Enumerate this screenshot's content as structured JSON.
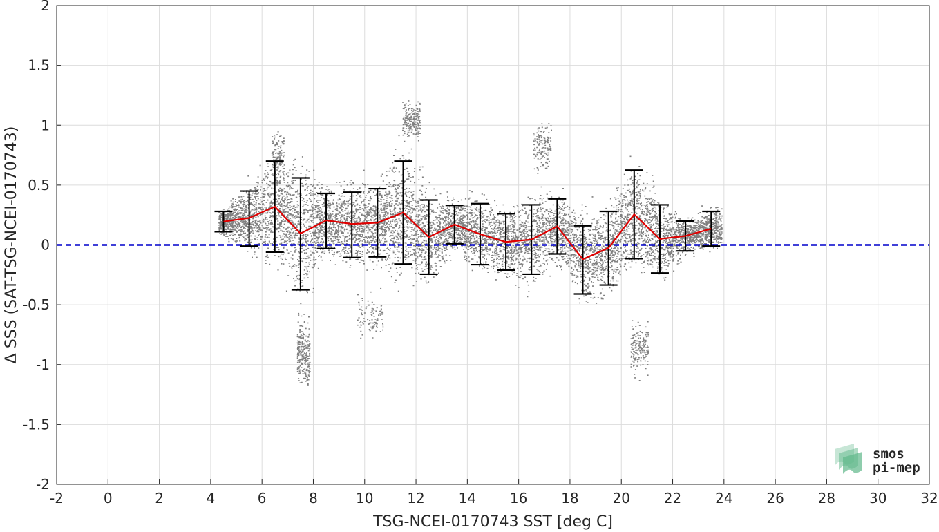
{
  "chart_data": {
    "type": "scatter",
    "xlabel": "TSG-NCEI-0170743 SST [deg C]",
    "ylabel": "Δ SSS (SAT-TSG-NCEI-0170743)",
    "xlim": [
      -2,
      32
    ],
    "ylim": [
      -2,
      2
    ],
    "x_ticks": [
      -2,
      0,
      2,
      4,
      6,
      8,
      10,
      12,
      14,
      16,
      18,
      20,
      22,
      24,
      26,
      28,
      30,
      32
    ],
    "y_ticks": [
      2,
      1.5,
      1,
      0.5,
      0,
      -0.5,
      -1,
      -1.5,
      -2
    ],
    "grid": true,
    "reference_line": {
      "y": 0,
      "style": "dashed",
      "color": "#0000cc"
    },
    "series": [
      {
        "type": "line_with_errorbars",
        "color": "#e00000",
        "errorbar_color": "#000000",
        "x": [
          4.5,
          5.5,
          6.5,
          7.5,
          8.5,
          9.5,
          10.5,
          11.5,
          12.5,
          13.5,
          14.5,
          15.5,
          16.5,
          17.5,
          18.5,
          19.5,
          20.5,
          21.5,
          22.5,
          23.5
        ],
        "mean": [
          0.195,
          0.225,
          0.32,
          0.095,
          0.205,
          0.175,
          0.185,
          0.27,
          0.065,
          0.17,
          0.09,
          0.025,
          0.045,
          0.155,
          -0.12,
          -0.025,
          0.255,
          0.05,
          0.075,
          0.135
        ],
        "upper": [
          0.28,
          0.45,
          0.7,
          0.56,
          0.43,
          0.44,
          0.47,
          0.7,
          0.375,
          0.33,
          0.345,
          0.26,
          0.335,
          0.385,
          0.16,
          0.28,
          0.625,
          0.335,
          0.2,
          0.28
        ],
        "lower": [
          0.11,
          -0.01,
          -0.06,
          -0.375,
          -0.03,
          -0.105,
          -0.1,
          -0.16,
          -0.245,
          0.01,
          -0.165,
          -0.21,
          -0.245,
          -0.075,
          -0.41,
          -0.335,
          -0.115,
          -0.235,
          -0.05,
          -0.01
        ]
      }
    ],
    "scatter_color": "#808080"
  },
  "logo": {
    "line1": "smos",
    "line2": "pi-mep",
    "color": "#5fb88a"
  }
}
